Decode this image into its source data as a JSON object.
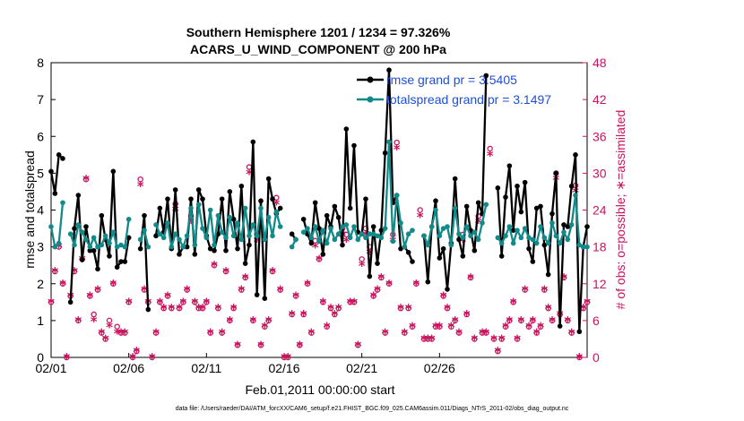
{
  "chart_data": {
    "type": "line",
    "title": "Southern Hemisphere 1201 / 1234 = 97.326%",
    "subtitle": "ACARS_U_WIND_COMPONENT @ 200 hPa",
    "xlabel": "Feb.01,2011 00:00:00 start",
    "ylabel": "rmse and totalspread",
    "y2label": "# of obs: o=possible; ∗=assimilated",
    "x_ticks": [
      "02/01",
      "02/06",
      "02/11",
      "02/16",
      "02/21",
      "02/26"
    ],
    "ylim": [
      0,
      8
    ],
    "y_ticks": [
      "0",
      "1",
      "2",
      "3",
      "4",
      "5",
      "6",
      "7",
      "8"
    ],
    "y2lim": [
      0,
      48
    ],
    "y2_ticks": [
      "0",
      "6",
      "12",
      "18",
      "24",
      "30",
      "36",
      "42",
      "48"
    ],
    "legend_position": "top-right",
    "series": [
      {
        "name": "rmse grand pr = 3.5405",
        "color": "#000000",
        "values": [
          5.05,
          4.45,
          5.5,
          5.4,
          null,
          1.5,
          3.5,
          4.4,
          2.65,
          3.55,
          2.9,
          2.9,
          2.4,
          3.85,
          3.2,
          2.75,
          5.05,
          2.45,
          2.6,
          2.6,
          3.25,
          null,
          null,
          2.95,
          3.85,
          1.3,
          null,
          3.3,
          4.05,
          3.4,
          4.3,
          2.95,
          4.55,
          2.8,
          3.0,
          3.0,
          4.3,
          2.8,
          4.55,
          4.3,
          3.3,
          2.95,
          2.9,
          3.35,
          4.3,
          2.9,
          4.5,
          3.75,
          2.95,
          4.65,
          2.55,
          3.05,
          5.85,
          1.7,
          4.25,
          1.6,
          4.85,
          4.3,
          3.9,
          4.05,
          null,
          null,
          3.35,
          3.2,
          null,
          3.75,
          3.35,
          3.1,
          4.2,
          3.5,
          2.8,
          3.85,
          3.55,
          4.1,
          3.8,
          3.05,
          6.2,
          4.05,
          5.75,
          3.4,
          3.35,
          4.3,
          2.2,
          3.55,
          2.55,
          3.45,
          5.55,
          7.8,
          4.2,
          4.4,
          2.95,
          3.0,
          2.85,
          2.6,
          null,
          null,
          3.3,
          2.05,
          3.55,
          4.25,
          2.7,
          2.95,
          1.85,
          3.1,
          4.85,
          3.2,
          2.75,
          4.1,
          3.45,
          2.9,
          4.2,
          3.9,
          7.65,
          null,
          null,
          4.6,
          2.75,
          4.35,
          5.2,
          3.45,
          4.65,
          3.95,
          4.75,
          2.95,
          2.6,
          4.05,
          4.1,
          3.05,
          2.25,
          3.9,
          5.0,
          0.85,
          3.6,
          3.55,
          4.65,
          5.5,
          0.7,
          3.0,
          3.55
        ]
      },
      {
        "name": "totalspread grand pr = 3.1497",
        "color": "#138a8a",
        "values": [
          3.55,
          3.0,
          3.1,
          4.2,
          null,
          3.35,
          3.05,
          3.6,
          3.4,
          3.2,
          3.0,
          3.25,
          3.0,
          3.05,
          3.3,
          3.1,
          3.4,
          3.0,
          3.05,
          3.0,
          3.75,
          null,
          null,
          3.2,
          3.45,
          3.0,
          null,
          3.6,
          3.35,
          3.25,
          3.65,
          3.0,
          3.35,
          3.2,
          3.0,
          3.3,
          4.05,
          3.05,
          4.15,
          3.5,
          3.25,
          4.0,
          3.05,
          3.85,
          3.4,
          3.25,
          3.8,
          3.3,
          3.65,
          3.2,
          4.05,
          3.3,
          3.6,
          3.3,
          4.05,
          3.2,
          3.8,
          3.3,
          3.95,
          3.55,
          null,
          null,
          3.0,
          3.2,
          null,
          3.4,
          3.5,
          3.25,
          3.55,
          3.15,
          3.45,
          3.1,
          3.5,
          3.2,
          3.35,
          3.55,
          3.6,
          3.25,
          3.55,
          3.2,
          3.35,
          3.25,
          3.35,
          3.35,
          3.3,
          3.25,
          3.5,
          5.85,
          3.15,
          4.4,
          3.65,
          3.0,
          3.35,
          3.45,
          null,
          null,
          3.3,
          3.05,
          3.55,
          4.0,
          3.3,
          3.5,
          3.55,
          3.05,
          4.05,
          3.35,
          3.25,
          3.55,
          3.3,
          3.4,
          3.2,
          3.65,
          4.15,
          null,
          null,
          3.25,
          3.1,
          3.3,
          3.55,
          3.1,
          3.45,
          3.25,
          3.5,
          3.25,
          3.2,
          3.1,
          3.55,
          3.25,
          3.1,
          3.65,
          3.3,
          3.1,
          3.4,
          3.2,
          3.6,
          4.4,
          3.05,
          3.0,
          3.0
        ]
      }
    ],
    "obs_possible": [
      9,
      14,
      18,
      12,
      0,
      10,
      14,
      6,
      16,
      29,
      10,
      7,
      11,
      4,
      3,
      6,
      12,
      5,
      4,
      4,
      9,
      0,
      1,
      29,
      11,
      9,
      0,
      4,
      9,
      8,
      10,
      8,
      25,
      8,
      9,
      11,
      23,
      9,
      8,
      8,
      9,
      4,
      15,
      8,
      4,
      14,
      6,
      8,
      2,
      11,
      13,
      31,
      6,
      20,
      2,
      5,
      6,
      14,
      26,
      11,
      0,
      0,
      7,
      10,
      2,
      7,
      12,
      4,
      19,
      16,
      9,
      5,
      8,
      7,
      8,
      21,
      20,
      9,
      9,
      2,
      16,
      21,
      18,
      10,
      11,
      13,
      4,
      12,
      20,
      35,
      8,
      4,
      8,
      5,
      12,
      24,
      3,
      3,
      3,
      5,
      5,
      10,
      8,
      5,
      6,
      4,
      20,
      7,
      13,
      3,
      23,
      4,
      4,
      34,
      3,
      1,
      3,
      5,
      6,
      9,
      3,
      6,
      11,
      5,
      6,
      4,
      5,
      11,
      8,
      6,
      30,
      7,
      13,
      6,
      4,
      28,
      0,
      8,
      9
    ],
    "obs_assimilated": [
      9,
      14,
      18,
      12,
      0,
      10,
      14,
      6,
      16,
      29,
      10,
      6,
      11,
      4,
      3,
      5,
      12,
      4,
      4,
      4,
      9,
      0,
      1,
      28,
      11,
      9,
      0,
      4,
      9,
      8,
      10,
      8,
      24,
      8,
      9,
      11,
      22,
      9,
      8,
      8,
      9,
      4,
      15,
      8,
      4,
      14,
      6,
      8,
      2,
      11,
      13,
      30,
      6,
      19,
      2,
      5,
      6,
      14,
      25,
      11,
      0,
      0,
      7,
      10,
      2,
      7,
      12,
      4,
      18,
      16,
      9,
      5,
      8,
      7,
      8,
      20,
      19,
      9,
      9,
      2,
      15,
      20,
      17,
      10,
      11,
      13,
      4,
      12,
      19,
      34,
      8,
      4,
      8,
      5,
      12,
      23,
      3,
      3,
      3,
      5,
      5,
      10,
      8,
      5,
      6,
      4,
      19,
      7,
      13,
      3,
      22,
      4,
      4,
      33,
      3,
      1,
      3,
      5,
      6,
      9,
      3,
      6,
      11,
      5,
      6,
      4,
      5,
      11,
      8,
      6,
      29,
      7,
      13,
      6,
      4,
      27,
      0,
      8,
      9
    ],
    "obs_color": "#c8155e",
    "footer": "data file: /Users/raeder/DAI/ATM_forcXX/CAM6_setup/f.e21.FHIST_BGC.f09_025.CAM6assim.011/Diags_NTrS_2011-02/obs_diag_output.nc"
  }
}
